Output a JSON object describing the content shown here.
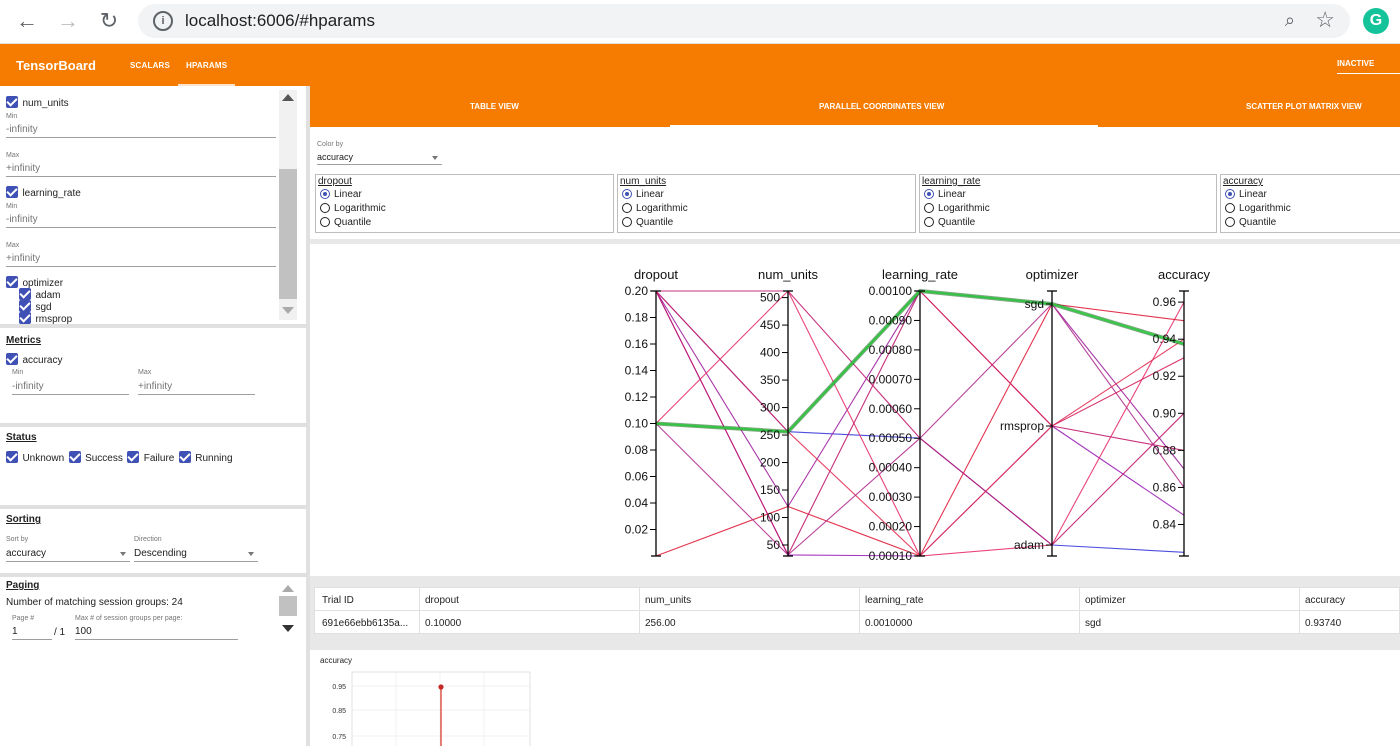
{
  "browser": {
    "url": "localhost:6006/#hparams",
    "back_icon": "←",
    "forward_icon": "→",
    "reload_icon": "↻",
    "info_icon": "i",
    "zoom_icon": "⌕",
    "star_icon": "☆",
    "extension_letter": "G"
  },
  "header": {
    "title": "TensorBoard",
    "tabs": [
      "SCALARS",
      "HPARAMS"
    ],
    "active_tab": "HPARAMS",
    "status": "INACTIVE",
    "color": "#f57c00"
  },
  "sidebar": {
    "hparams": {
      "num_units": {
        "label": "num_units",
        "min_label": "Min",
        "min_value": "-infinity",
        "max_label": "Max",
        "max_value": "+infinity"
      },
      "learning_rate": {
        "label": "learning_rate",
        "min_label": "Min",
        "min_value": "-infinity",
        "max_label": "Max",
        "max_value": "+infinity"
      },
      "optimizer": {
        "label": "optimizer",
        "values": [
          "adam",
          "sgd",
          "rmsprop"
        ]
      }
    },
    "metrics": {
      "title": "Metrics",
      "accuracy": {
        "label": "accuracy",
        "min_label": "Min",
        "min_value": "-infinity",
        "max_label": "Max",
        "max_value": "+infinity"
      }
    },
    "status": {
      "title": "Status",
      "items": [
        "Unknown",
        "Success",
        "Failure",
        "Running"
      ]
    },
    "sorting": {
      "title": "Sorting",
      "sort_by_label": "Sort by",
      "sort_by_value": "accuracy",
      "direction_label": "Direction",
      "direction_value": "Descending"
    },
    "paging": {
      "title": "Paging",
      "matching_text": "Number of matching session groups: 24",
      "page_label": "Page #",
      "page_value": "1",
      "page_total": "/ 1",
      "per_page_label": "Max # of session groups per page:",
      "per_page_value": "100"
    }
  },
  "main": {
    "view_tabs": [
      "TABLE VIEW",
      "PARALLEL COORDINATES VIEW",
      "SCATTER PLOT MATRIX VIEW"
    ],
    "active_view": "PARALLEL COORDINATES VIEW",
    "color_by_label": "Color by",
    "color_by_value": "accuracy",
    "scale_boxes": [
      {
        "name": "dropout",
        "options": [
          "Linear",
          "Logarithmic",
          "Quantile"
        ],
        "selected": "Linear"
      },
      {
        "name": "num_units",
        "options": [
          "Linear",
          "Logarithmic",
          "Quantile"
        ],
        "selected": "Linear"
      },
      {
        "name": "learning_rate",
        "options": [
          "Linear",
          "Logarithmic",
          "Quantile"
        ],
        "selected": "Linear"
      },
      {
        "name": "accuracy",
        "options": [
          "Linear",
          "Logarithmic",
          "Quantile"
        ],
        "selected": "Linear"
      }
    ],
    "table": {
      "headers": [
        "Trial ID",
        "dropout",
        "num_units",
        "learning_rate",
        "optimizer",
        "accuracy"
      ],
      "rows": [
        [
          "691e66ebb6135a...",
          "0.10000",
          "256.00",
          "0.0010000",
          "sgd",
          "0.93740"
        ]
      ]
    },
    "mini_chart": {
      "title": "accuracy",
      "ticks": [
        "0.95",
        "0.85",
        "0.75"
      ]
    }
  },
  "chart_data": {
    "type": "parallel_coordinates",
    "axes": [
      {
        "name": "dropout",
        "ticks": [
          "0.20",
          "0.18",
          "0.16",
          "0.14",
          "0.12",
          "0.10",
          "0.08",
          "0.06",
          "0.04",
          "0.02"
        ],
        "range": [
          0.0,
          0.2
        ]
      },
      {
        "name": "num_units",
        "ticks": [
          "500",
          "450",
          "400",
          "350",
          "300",
          "250",
          "200",
          "150",
          "100",
          "50"
        ],
        "range": [
          30,
          512
        ]
      },
      {
        "name": "learning_rate",
        "ticks": [
          "0.00100",
          "0.00090",
          "0.00080",
          "0.00070",
          "0.00060",
          "0.00050",
          "0.00040",
          "0.00030",
          "0.00020",
          "0.00010"
        ],
        "range": [
          0.0001,
          0.001
        ]
      },
      {
        "name": "optimizer",
        "categories": [
          "sgd",
          "rmsprop",
          "adam"
        ]
      },
      {
        "name": "accuracy",
        "ticks": [
          "0.96",
          "0.94",
          "0.92",
          "0.90",
          "0.88",
          "0.86",
          "0.84"
        ],
        "range": [
          0.823,
          0.966
        ]
      }
    ],
    "trials": [
      {
        "dropout": 0.1,
        "num_units": 256,
        "learning_rate": 0.001,
        "optimizer": "sgd",
        "accuracy": 0.9374,
        "highlight": true,
        "color": "#2ecc40"
      },
      {
        "dropout": 0.2,
        "num_units": 256,
        "learning_rate": 0.0005,
        "optimizer": "adam",
        "accuracy": 0.825,
        "color": "#3b3bdc"
      },
      {
        "dropout": 0.2,
        "num_units": 32,
        "learning_rate": 0.0001,
        "optimizer": "rmsprop",
        "accuracy": 0.845,
        "color": "#9b1fb8"
      },
      {
        "dropout": 0.2,
        "num_units": 120,
        "learning_rate": 0.001,
        "optimizer": "sgd",
        "accuracy": 0.87,
        "color": "#a020a0"
      },
      {
        "dropout": 0.1,
        "num_units": 512,
        "learning_rate": 0.0001,
        "optimizer": "adam",
        "accuracy": 0.96,
        "color": "#e8306a"
      },
      {
        "dropout": 0.0,
        "num_units": 120,
        "learning_rate": 0.0001,
        "optimizer": "sgd",
        "accuracy": 0.95,
        "color": "#e01e3c"
      },
      {
        "dropout": 0.2,
        "num_units": 32,
        "learning_rate": 0.001,
        "optimizer": "rmsprop",
        "accuracy": 0.88,
        "color": "#c2186b"
      },
      {
        "dropout": 0.1,
        "num_units": 256,
        "learning_rate": 0.0001,
        "optimizer": "rmsprop",
        "accuracy": 0.94,
        "color": "#e33056"
      },
      {
        "dropout": 0.2,
        "num_units": 512,
        "learning_rate": 0.0005,
        "optimizer": "adam",
        "accuracy": 0.9,
        "color": "#c31b70"
      },
      {
        "dropout": 0.1,
        "num_units": 32,
        "learning_rate": 0.0005,
        "optimizer": "sgd",
        "accuracy": 0.86,
        "color": "#b2308f"
      },
      {
        "dropout": 0.2,
        "num_units": 256,
        "learning_rate": 0.001,
        "optimizer": "rmsprop",
        "accuracy": 0.93,
        "color": "#d6205e"
      }
    ]
  }
}
